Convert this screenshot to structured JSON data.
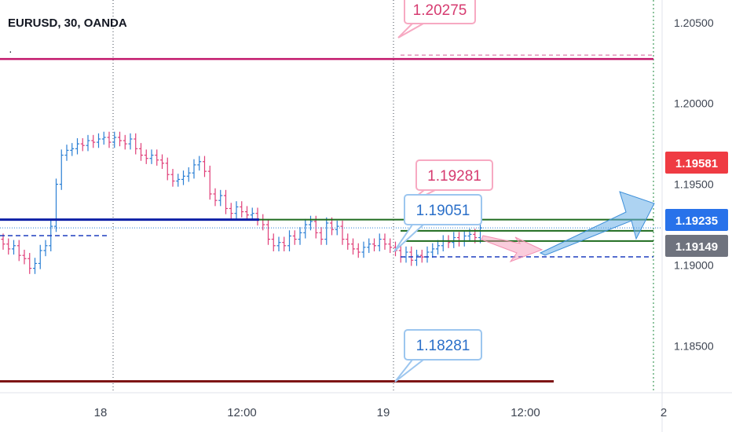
{
  "header": {
    "symbol": "EURUSD, 30, OANDA"
  },
  "colors": {
    "up": "#2a7fd4",
    "down": "#e03e78",
    "magenta_line": "#c2186b",
    "blue_line": "#0d1fa6",
    "green_line": "#1e6b1e",
    "dark_red_line": "#7e1515",
    "dashed_blue": "#1f3fbf",
    "axis_text": "#3d4451",
    "grid": "#3d4451",
    "badge_red": "#ef3b43",
    "badge_blue": "#2872ea",
    "badge_gray": "#6f737e"
  },
  "chart_data": {
    "type": "candlestick",
    "symbol": "EURUSD",
    "interval": "30",
    "source": "OANDA",
    "x_tick_labels": [
      "18",
      "12:00",
      "19",
      "12:00",
      "2"
    ],
    "y_tick_labels": [
      "1.20500",
      "1.20000",
      "1.19500",
      "1.19000",
      "1.18500"
    ],
    "y_ticks": [
      1.205,
      1.2,
      1.195,
      1.19,
      1.185
    ],
    "ylim": [
      1.1822,
      1.2064
    ],
    "price_badges": [
      {
        "label": "1.19581",
        "value": 1.19581,
        "style": "red"
      },
      {
        "label": "1.19235",
        "value": 1.19235,
        "style": "blue"
      },
      {
        "label": "1.19149",
        "value": 1.19149,
        "style": "gray"
      }
    ],
    "callouts": [
      {
        "label": "1.20275",
        "value": 1.20275,
        "style": "pink"
      },
      {
        "label": "1.19281",
        "value": 1.19281,
        "style": "pink"
      },
      {
        "label": "1.19051",
        "value": 1.19051,
        "style": "blue"
      },
      {
        "label": "1.18281",
        "value": 1.18281,
        "style": "blue"
      }
    ],
    "levels": [
      {
        "value": 1.20275,
        "style": "magenta"
      },
      {
        "value": 1.19281,
        "style": "blue-then-green"
      },
      {
        "value": 1.19149,
        "style": "green"
      },
      {
        "value": 1.19051,
        "style": "dashed-blue"
      },
      {
        "value": 1.18281,
        "style": "dark-red"
      }
    ],
    "closes": [
      1.1913,
      1.191,
      1.1912,
      1.1906,
      1.1904,
      1.1898,
      1.1901,
      1.1909,
      1.1912,
      1.1924,
      1.195,
      1.1968,
      1.1971,
      1.1972,
      1.1975,
      1.1974,
      1.1977,
      1.1976,
      1.1978,
      1.1979,
      1.1976,
      1.1979,
      1.1977,
      1.1975,
      1.1978,
      1.1972,
      1.1968,
      1.1966,
      1.1968,
      1.1965,
      1.1963,
      1.1956,
      1.1952,
      1.1953,
      1.1955,
      1.1957,
      1.1962,
      1.1964,
      1.1958,
      1.1944,
      1.194,
      1.1943,
      1.1935,
      1.1932,
      1.1936,
      1.1933,
      1.1931,
      1.1932,
      1.1928,
      1.1925,
      1.1916,
      1.1912,
      1.1914,
      1.1912,
      1.1918,
      1.1916,
      1.192,
      1.1925,
      1.1927,
      1.192,
      1.1916,
      1.1926,
      1.1922,
      1.1924,
      1.1916,
      1.1913,
      1.191,
      1.1908,
      1.1911,
      1.1913,
      1.1912,
      1.1916,
      1.1913,
      1.1911,
      1.1909,
      1.1905,
      1.1908,
      1.1903,
      1.1906,
      1.1905,
      1.1908,
      1.191,
      1.1912,
      1.1915,
      1.1914,
      1.1917,
      1.1915,
      1.1918,
      1.1919,
      1.1917,
      1.1923
    ]
  }
}
